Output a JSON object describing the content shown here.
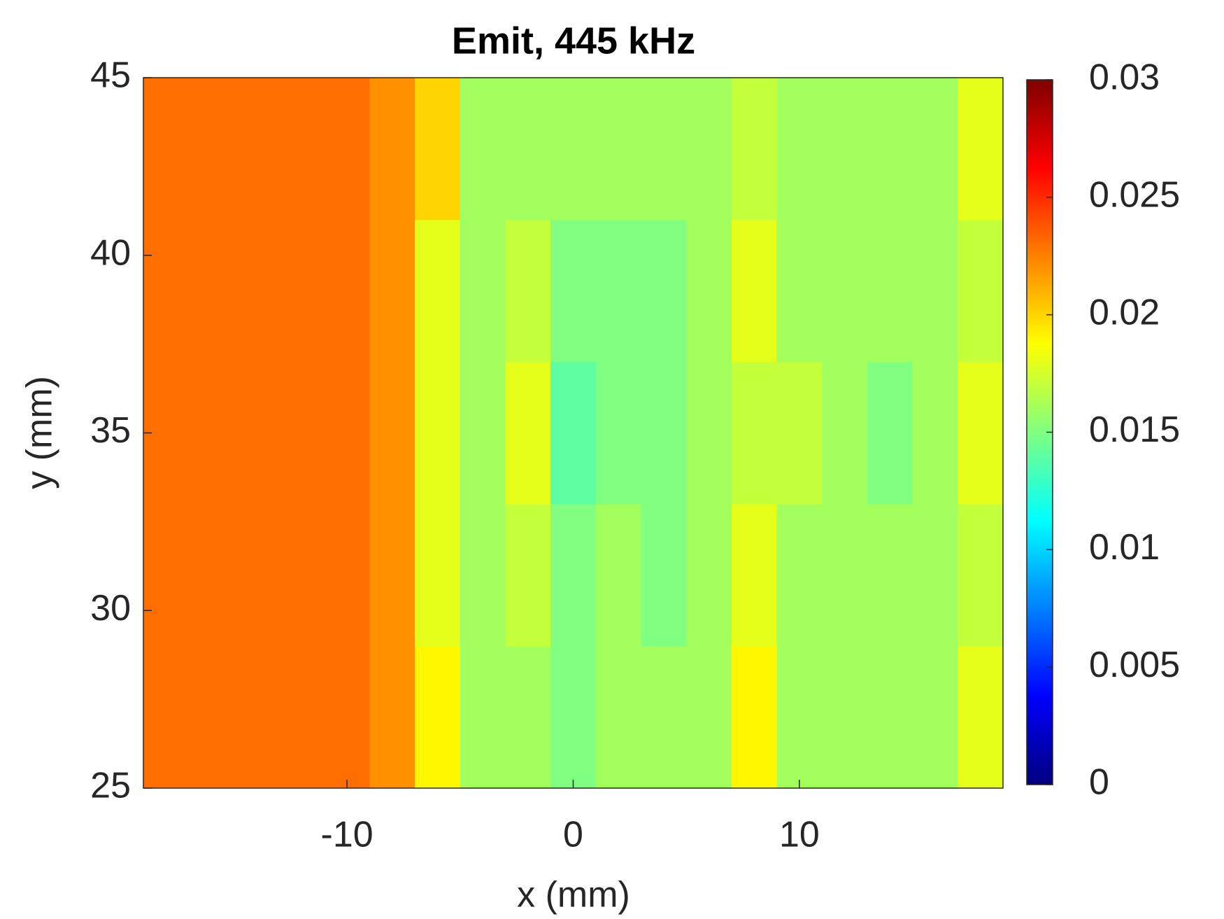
{
  "chart_data": {
    "type": "heatmap",
    "title": "Emit, 445 kHz",
    "x_label": "x (mm)",
    "y_label": "y (mm)",
    "x": [
      -18,
      -16,
      -14,
      -12,
      -10,
      -8,
      -6,
      -4,
      -2,
      0,
      2,
      4,
      6,
      8,
      10,
      12,
      14,
      16,
      18
    ],
    "y": [
      27,
      31,
      35,
      39,
      43
    ],
    "z": [
      [
        0.023,
        0.023,
        0.023,
        0.023,
        0.023,
        0.022,
        0.019,
        0.016,
        0.016,
        0.015,
        0.016,
        0.016,
        0.016,
        0.019,
        0.016,
        0.016,
        0.016,
        0.016,
        0.018
      ],
      [
        0.023,
        0.023,
        0.023,
        0.023,
        0.023,
        0.022,
        0.018,
        0.016,
        0.017,
        0.015,
        0.016,
        0.015,
        0.016,
        0.018,
        0.016,
        0.016,
        0.016,
        0.016,
        0.017
      ],
      [
        0.023,
        0.023,
        0.023,
        0.023,
        0.023,
        0.022,
        0.018,
        0.016,
        0.018,
        0.014,
        0.015,
        0.015,
        0.016,
        0.017,
        0.017,
        0.016,
        0.015,
        0.016,
        0.018
      ],
      [
        0.023,
        0.023,
        0.023,
        0.023,
        0.023,
        0.022,
        0.018,
        0.016,
        0.017,
        0.015,
        0.015,
        0.015,
        0.016,
        0.018,
        0.016,
        0.016,
        0.016,
        0.016,
        0.017
      ],
      [
        0.023,
        0.023,
        0.023,
        0.023,
        0.023,
        0.022,
        0.02,
        0.016,
        0.016,
        0.016,
        0.016,
        0.016,
        0.016,
        0.017,
        0.016,
        0.016,
        0.016,
        0.016,
        0.018
      ]
    ],
    "xlim": [
      -19,
      19
    ],
    "xticks": [
      -10,
      0,
      10
    ],
    "ylim": [
      25,
      45
    ],
    "yticks": [
      25,
      30,
      35,
      40,
      45
    ],
    "colormap": "jet",
    "clim": [
      0,
      0.03
    ],
    "cticks": [
      0,
      0.005,
      0.01,
      0.015,
      0.02,
      0.025,
      0.03
    ]
  }
}
